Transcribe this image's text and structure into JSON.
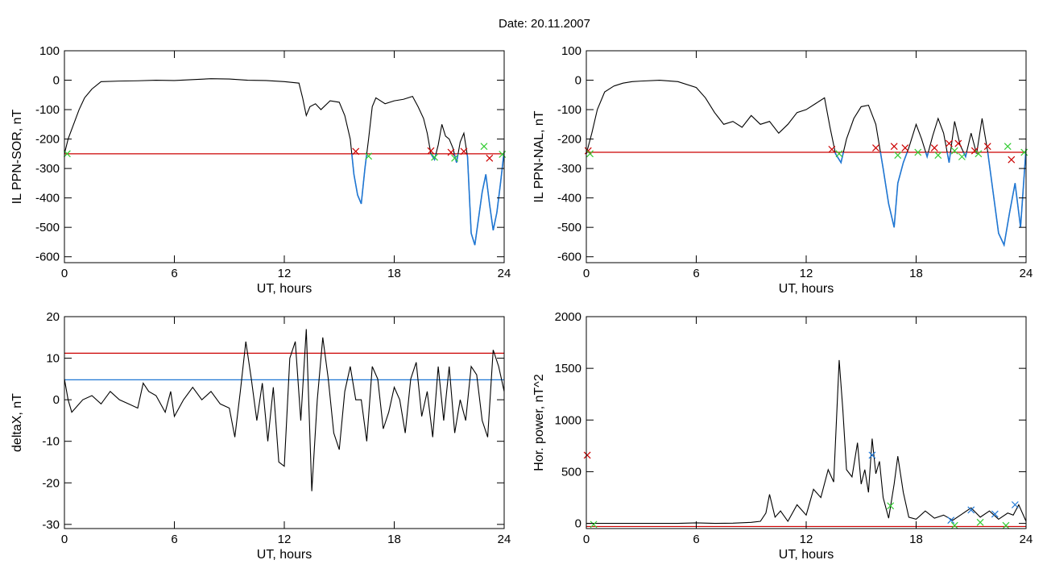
{
  "figure": {
    "title": "Date:  20.11.2007",
    "colors": {
      "trace": "#000000",
      "red": "#cc0000",
      "blue": "#1f77d4",
      "green": "#33cc33"
    }
  },
  "chart_data": [
    {
      "type": "line",
      "xlabel": "UT, hours",
      "ylabel": "IL PPN-SOR, nT",
      "xlim": [
        0,
        24
      ],
      "ylim": [
        -620,
        100
      ],
      "xticks": [
        0,
        6,
        12,
        18,
        24
      ],
      "yticks": [
        100,
        0,
        -100,
        -200,
        -300,
        -400,
        -500,
        -600
      ],
      "series": [
        {
          "x": [
            0,
            0.2,
            0.5,
            0.8,
            1.1,
            1.5,
            2,
            3,
            4,
            5,
            6,
            7,
            8,
            9,
            10,
            11,
            12,
            12.8,
            13.0,
            13.2,
            13.4,
            13.7,
            14.0,
            14.5,
            15.0,
            15.3,
            15.6,
            15.8,
            16.0,
            16.2,
            16.4,
            16.6,
            16.8,
            17.0,
            17.5,
            18.0,
            18.5,
            19.0,
            19.3,
            19.6,
            19.8,
            20.0,
            20.2,
            20.4,
            20.6,
            20.8,
            21.0,
            21.2,
            21.4,
            21.6,
            21.8,
            22.0,
            22.2,
            22.4,
            22.6,
            22.8,
            23.0,
            23.2,
            23.4,
            23.6,
            23.8,
            24.0
          ],
          "y": [
            -250,
            -200,
            -150,
            -100,
            -60,
            -30,
            -5,
            -3,
            -2,
            0,
            -1,
            2,
            5,
            4,
            0,
            -1,
            -5,
            -10,
            -60,
            -120,
            -90,
            -80,
            -100,
            -70,
            -75,
            -120,
            -200,
            -320,
            -390,
            -420,
            -300,
            -200,
            -90,
            -60,
            -80,
            -70,
            -65,
            -55,
            -90,
            -130,
            -180,
            -250,
            -270,
            -220,
            -150,
            -190,
            -200,
            -230,
            -280,
            -210,
            -180,
            -260,
            -520,
            -560,
            -470,
            -380,
            -320,
            -420,
            -510,
            -450,
            -350,
            -240
          ]
        }
      ],
      "reference_lines": [
        {
          "y": -250,
          "color": "red"
        }
      ],
      "markers": [
        {
          "x": 0.15,
          "y": -250,
          "color": "green",
          "symbol": "x"
        },
        {
          "x": 15.9,
          "y": -242,
          "color": "red",
          "symbol": "x"
        },
        {
          "x": 16.6,
          "y": -258,
          "color": "green",
          "symbol": "x"
        },
        {
          "x": 20.0,
          "y": -240,
          "color": "red",
          "symbol": "x"
        },
        {
          "x": 20.2,
          "y": -262,
          "color": "green",
          "symbol": "x"
        },
        {
          "x": 21.1,
          "y": -245,
          "color": "red",
          "symbol": "x"
        },
        {
          "x": 21.3,
          "y": -265,
          "color": "green",
          "symbol": "x"
        },
        {
          "x": 21.8,
          "y": -242,
          "color": "red",
          "symbol": "x"
        },
        {
          "x": 22.9,
          "y": -225,
          "color": "green",
          "symbol": "x"
        },
        {
          "x": 23.2,
          "y": -265,
          "color": "red",
          "symbol": "x"
        },
        {
          "x": 23.9,
          "y": -252,
          "color": "green",
          "symbol": "x"
        }
      ],
      "below_line_color": "blue"
    },
    {
      "type": "line",
      "xlabel": "UT, hours",
      "ylabel": "IL PPN-NAL, nT",
      "xlim": [
        0,
        24
      ],
      "ylim": [
        -620,
        100
      ],
      "xticks": [
        0,
        6,
        12,
        18,
        24
      ],
      "yticks": [
        100,
        0,
        -100,
        -200,
        -300,
        -400,
        -500,
        -600
      ],
      "series": [
        {
          "x": [
            0,
            0.3,
            0.6,
            1.0,
            1.5,
            2.0,
            2.5,
            3,
            4,
            5,
            6,
            6.5,
            7.0,
            7.5,
            8.0,
            8.5,
            9.0,
            9.5,
            10.0,
            10.5,
            11.0,
            11.5,
            12.0,
            12.5,
            13.0,
            13.3,
            13.6,
            13.9,
            14.2,
            14.6,
            15.0,
            15.4,
            15.8,
            16.2,
            16.5,
            16.8,
            17.0,
            17.3,
            17.6,
            18.0,
            18.3,
            18.6,
            18.9,
            19.2,
            19.5,
            19.8,
            20.1,
            20.4,
            20.7,
            21.0,
            21.3,
            21.6,
            21.9,
            22.2,
            22.5,
            22.8,
            23.1,
            23.4,
            23.7,
            24.0
          ],
          "y": [
            -250,
            -180,
            -100,
            -40,
            -20,
            -10,
            -5,
            -3,
            0,
            -5,
            -25,
            -60,
            -110,
            -150,
            -140,
            -160,
            -120,
            -150,
            -140,
            -180,
            -150,
            -110,
            -100,
            -80,
            -60,
            -160,
            -250,
            -280,
            -200,
            -130,
            -90,
            -85,
            -150,
            -300,
            -420,
            -500,
            -350,
            -280,
            -230,
            -150,
            -200,
            -260,
            -190,
            -130,
            -180,
            -280,
            -140,
            -220,
            -260,
            -180,
            -250,
            -130,
            -240,
            -380,
            -520,
            -560,
            -450,
            -350,
            -500,
            -230
          ]
        }
      ],
      "reference_lines": [
        {
          "y": -245,
          "color": "red"
        }
      ],
      "markers": [
        {
          "x": 0.1,
          "y": -240,
          "color": "red",
          "symbol": "x"
        },
        {
          "x": 0.2,
          "y": -250,
          "color": "green",
          "symbol": "x"
        },
        {
          "x": 13.4,
          "y": -235,
          "color": "red",
          "symbol": "x"
        },
        {
          "x": 13.8,
          "y": -250,
          "color": "green",
          "symbol": "x"
        },
        {
          "x": 15.8,
          "y": -230,
          "color": "red",
          "symbol": "x"
        },
        {
          "x": 16.8,
          "y": -225,
          "color": "red",
          "symbol": "x"
        },
        {
          "x": 17.0,
          "y": -255,
          "color": "green",
          "symbol": "x"
        },
        {
          "x": 17.4,
          "y": -230,
          "color": "red",
          "symbol": "x"
        },
        {
          "x": 18.1,
          "y": -245,
          "color": "green",
          "symbol": "x"
        },
        {
          "x": 19.0,
          "y": -230,
          "color": "red",
          "symbol": "x"
        },
        {
          "x": 19.2,
          "y": -255,
          "color": "green",
          "symbol": "x"
        },
        {
          "x": 19.8,
          "y": -215,
          "color": "red",
          "symbol": "x"
        },
        {
          "x": 20.1,
          "y": -240,
          "color": "green",
          "symbol": "x"
        },
        {
          "x": 20.3,
          "y": -215,
          "color": "red",
          "symbol": "x"
        },
        {
          "x": 20.5,
          "y": -260,
          "color": "green",
          "symbol": "x"
        },
        {
          "x": 21.2,
          "y": -240,
          "color": "red",
          "symbol": "x"
        },
        {
          "x": 21.4,
          "y": -250,
          "color": "green",
          "symbol": "x"
        },
        {
          "x": 21.9,
          "y": -225,
          "color": "red",
          "symbol": "x"
        },
        {
          "x": 23.0,
          "y": -225,
          "color": "green",
          "symbol": "x"
        },
        {
          "x": 23.2,
          "y": -270,
          "color": "red",
          "symbol": "x"
        },
        {
          "x": 23.9,
          "y": -245,
          "color": "green",
          "symbol": "x"
        }
      ],
      "below_line_color": "blue"
    },
    {
      "type": "line",
      "xlabel": "UT, hours",
      "ylabel": "deltaX, nT",
      "xlim": [
        0,
        24
      ],
      "ylim": [
        -31,
        20
      ],
      "xticks": [
        0,
        6,
        12,
        18,
        24
      ],
      "yticks": [
        20,
        10,
        0,
        -10,
        -20,
        -30
      ],
      "series": [
        {
          "x": [
            0,
            0.2,
            0.4,
            0.6,
            1.0,
            1.5,
            2.0,
            2.5,
            3.0,
            3.5,
            4.0,
            4.3,
            4.6,
            5.0,
            5.5,
            5.8,
            6.0,
            6.5,
            7.0,
            7.5,
            8.0,
            8.5,
            9.0,
            9.3,
            9.6,
            9.9,
            10.2,
            10.5,
            10.8,
            11.1,
            11.4,
            11.7,
            12.0,
            12.3,
            12.6,
            12.9,
            13.2,
            13.5,
            13.8,
            14.1,
            14.4,
            14.7,
            15.0,
            15.3,
            15.6,
            15.9,
            16.2,
            16.5,
            16.8,
            17.1,
            17.4,
            17.7,
            18.0,
            18.3,
            18.6,
            18.9,
            19.2,
            19.5,
            19.8,
            20.1,
            20.4,
            20.7,
            21.0,
            21.3,
            21.6,
            21.9,
            22.2,
            22.5,
            22.8,
            23.1,
            23.4,
            23.7,
            24.0
          ],
          "y": [
            5,
            0,
            -3,
            -2,
            0,
            1,
            -1,
            2,
            0,
            -1,
            -2,
            4,
            2,
            1,
            -3,
            2,
            -4,
            0,
            3,
            0,
            2,
            -1,
            -2,
            -9,
            2,
            14,
            5,
            -5,
            4,
            -10,
            3,
            -15,
            -16,
            10,
            14,
            -5,
            17,
            -22,
            0,
            15,
            5,
            -8,
            -12,
            2,
            8,
            0,
            0,
            -10,
            8,
            5,
            -7,
            -3,
            3,
            0,
            -8,
            5,
            9,
            -4,
            2,
            -9,
            8,
            -5,
            8,
            -8,
            0,
            -5,
            8,
            6,
            -5,
            -9,
            12,
            8,
            2
          ]
        }
      ],
      "reference_lines": [
        {
          "y": 11.2,
          "color": "red"
        },
        {
          "y": 4.8,
          "color": "blue"
        }
      ]
    },
    {
      "type": "line",
      "xlabel": "UT, hours",
      "ylabel": "Hor. power, nT^2",
      "xlim": [
        0,
        24
      ],
      "ylim": [
        -50,
        2000
      ],
      "xticks": [
        0,
        6,
        12,
        18,
        24
      ],
      "yticks": [
        0,
        500,
        1000,
        1500,
        2000
      ],
      "series": [
        {
          "x": [
            0,
            1,
            2,
            3,
            4,
            5,
            6,
            7,
            8,
            9,
            9.5,
            9.8,
            10.0,
            10.3,
            10.6,
            11.0,
            11.5,
            12.0,
            12.4,
            12.8,
            13.2,
            13.5,
            13.8,
            14.0,
            14.2,
            14.5,
            14.8,
            15.0,
            15.2,
            15.4,
            15.6,
            15.8,
            16.0,
            16.2,
            16.5,
            16.8,
            17.0,
            17.3,
            17.6,
            18.0,
            18.5,
            19.0,
            19.5,
            20.0,
            20.5,
            21.0,
            21.5,
            22.0,
            22.5,
            23.0,
            23.3,
            23.6,
            24.0
          ],
          "y": [
            0,
            0,
            0,
            0,
            0,
            0,
            5,
            0,
            2,
            10,
            20,
            100,
            280,
            60,
            120,
            20,
            180,
            80,
            330,
            250,
            520,
            400,
            1580,
            1100,
            520,
            450,
            780,
            380,
            520,
            300,
            820,
            480,
            600,
            250,
            50,
            380,
            650,
            300,
            60,
            40,
            120,
            50,
            80,
            30,
            90,
            150,
            60,
            120,
            40,
            100,
            80,
            180,
            20
          ]
        }
      ],
      "reference_lines": [
        {
          "y": -30,
          "color": "red"
        }
      ],
      "markers": [
        {
          "x": 0.05,
          "y": 660,
          "color": "red",
          "symbol": "x"
        },
        {
          "x": 0.4,
          "y": -10,
          "color": "green",
          "symbol": "x"
        },
        {
          "x": 15.6,
          "y": 660,
          "color": "blue",
          "symbol": "x"
        },
        {
          "x": 16.6,
          "y": 170,
          "color": "green",
          "symbol": "x"
        },
        {
          "x": 19.9,
          "y": 30,
          "color": "blue",
          "symbol": "x"
        },
        {
          "x": 20.1,
          "y": -20,
          "color": "green",
          "symbol": "x"
        },
        {
          "x": 21.0,
          "y": 130,
          "color": "blue",
          "symbol": "x"
        },
        {
          "x": 21.5,
          "y": 10,
          "color": "green",
          "symbol": "x"
        },
        {
          "x": 22.3,
          "y": 90,
          "color": "blue",
          "symbol": "x"
        },
        {
          "x": 22.9,
          "y": -20,
          "color": "green",
          "symbol": "x"
        },
        {
          "x": 23.4,
          "y": 180,
          "color": "blue",
          "symbol": "x"
        }
      ]
    }
  ]
}
